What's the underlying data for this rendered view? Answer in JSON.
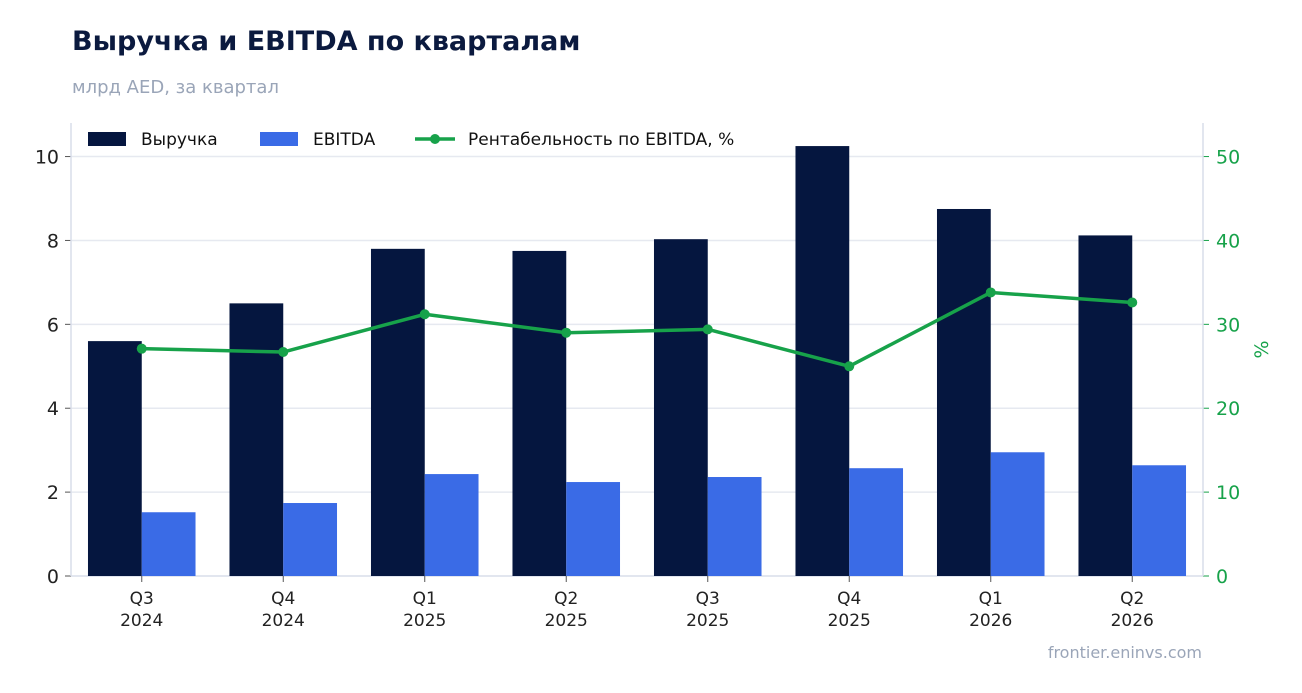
{
  "header": {
    "title": "Выручка и EBITDA по кварталам",
    "subtitle": "млрд AED, за квартал"
  },
  "footer": {
    "source": "frontier.eninvs.com"
  },
  "colors": {
    "revenue": "#05163f",
    "ebitda": "#3a6be6",
    "margin": "#17a24a",
    "grid": "#e6e9f0",
    "axis": "#d9deea"
  },
  "chart_data": {
    "type": "bar",
    "categories": [
      [
        "Q3",
        "2024"
      ],
      [
        "Q4",
        "2024"
      ],
      [
        "Q1",
        "2025"
      ],
      [
        "Q2",
        "2025"
      ],
      [
        "Q3",
        "2025"
      ],
      [
        "Q4",
        "2025"
      ],
      [
        "Q1",
        "2026"
      ],
      [
        "Q2",
        "2026"
      ]
    ],
    "series": [
      {
        "name": "Выручка",
        "type": "bar",
        "axis": "left",
        "values": [
          5.6,
          6.5,
          7.8,
          7.75,
          8.03,
          10.25,
          8.75,
          8.12
        ]
      },
      {
        "name": "EBITDA",
        "type": "bar",
        "axis": "left",
        "values": [
          1.52,
          1.74,
          2.43,
          2.24,
          2.36,
          2.57,
          2.95,
          2.64
        ]
      },
      {
        "name": "Рентабельность по EBITDA, %",
        "type": "line",
        "axis": "right",
        "values": [
          27.1,
          26.7,
          31.2,
          29.0,
          29.4,
          25.0,
          33.8,
          32.6
        ]
      }
    ],
    "ylim": [
      0,
      10.8
    ],
    "y2lim": [
      0,
      54
    ],
    "yticks": [
      "0",
      "2",
      "4",
      "6",
      "8",
      "10"
    ],
    "y2ticks": [
      "0",
      "10",
      "20",
      "30",
      "40",
      "50"
    ],
    "y2label": "%",
    "legend": "top-left",
    "grid": true
  }
}
